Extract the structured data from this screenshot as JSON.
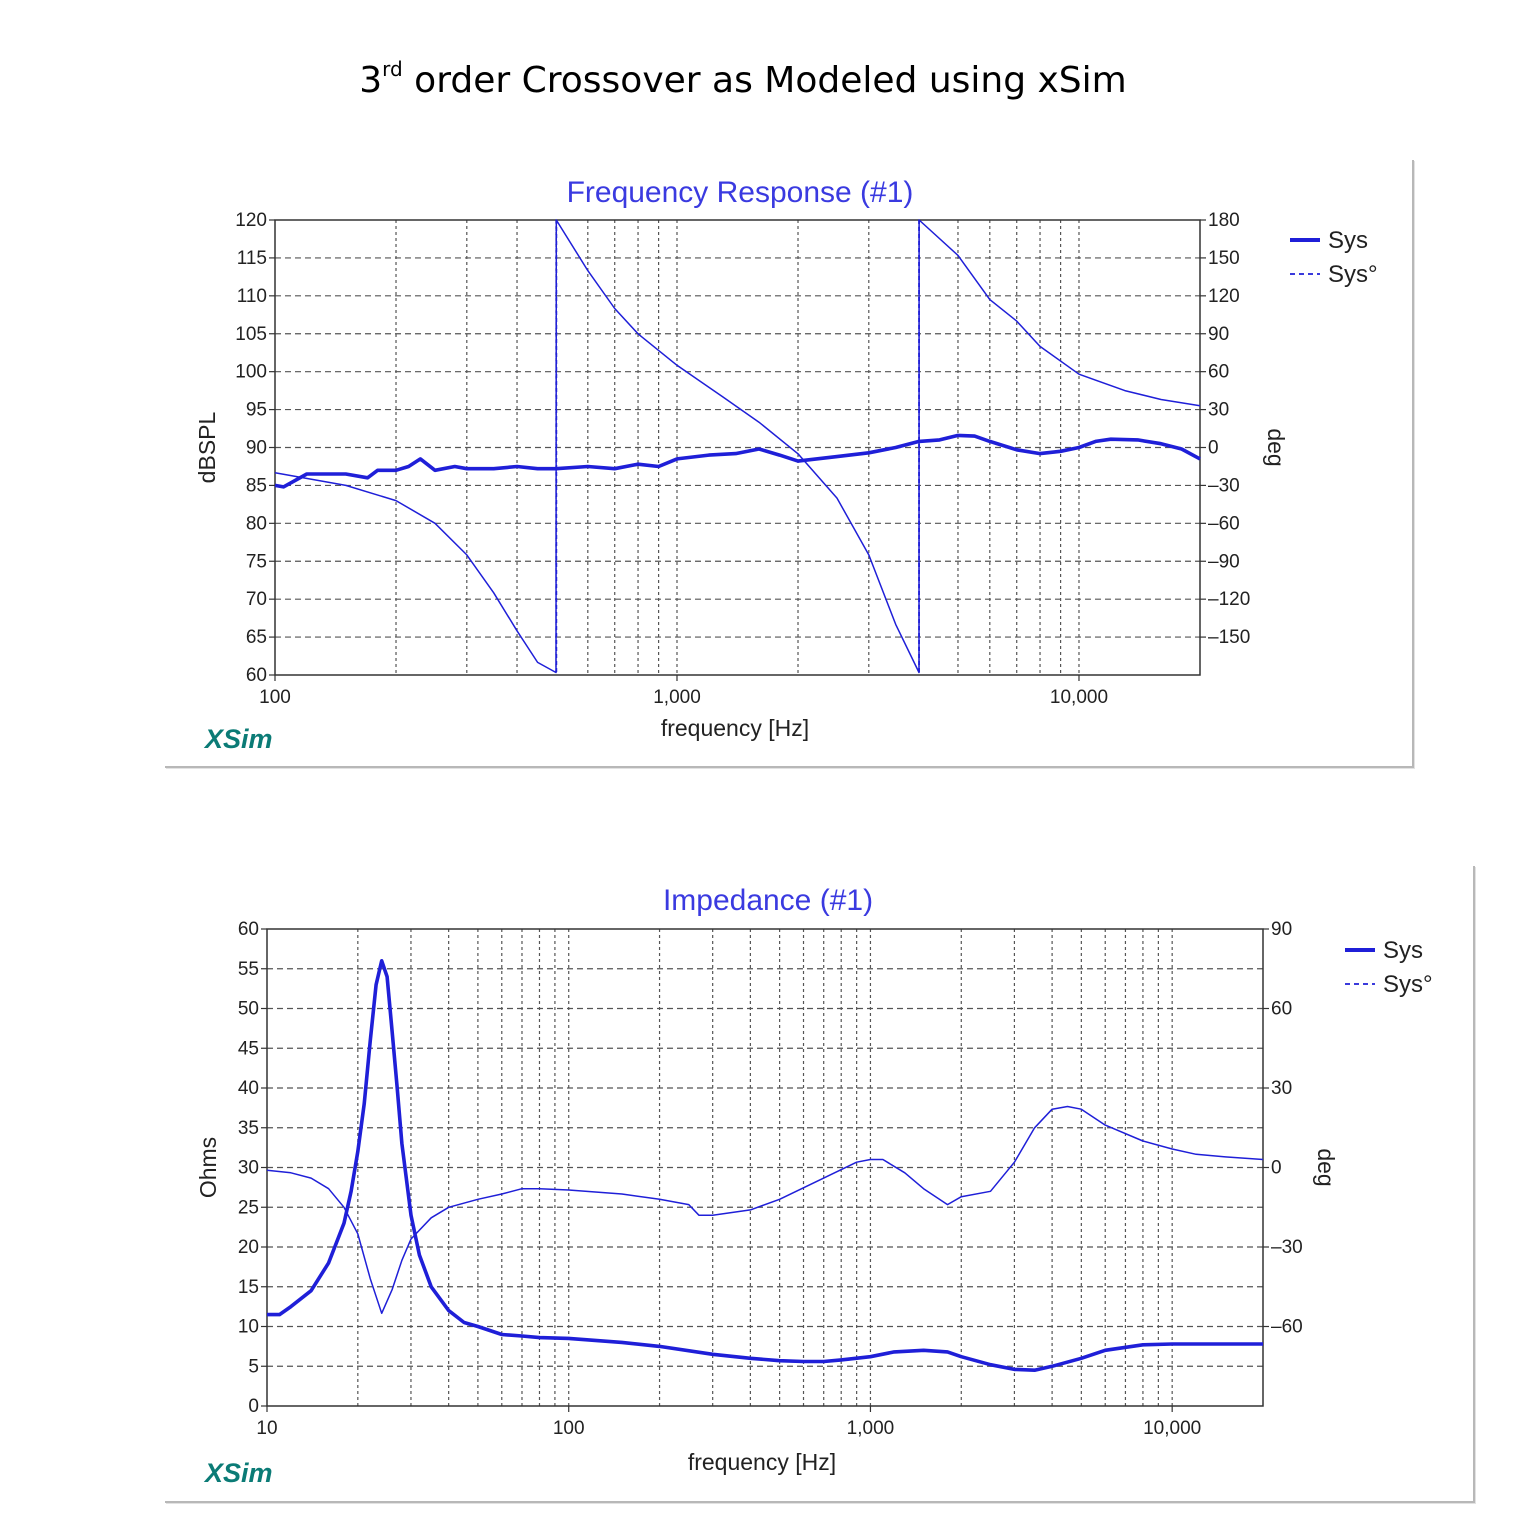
{
  "page": {
    "title_main": "3",
    "title_sup": "rd",
    "title_rest": " order Crossover as Modeled using xSim"
  },
  "colors": {
    "line": "#1f1fd8",
    "title": "#3a3ae0",
    "brand": "#0b7b76",
    "grid": "#555555"
  },
  "chart_data": [
    {
      "type": "line",
      "title": "Frequency Response (#1)",
      "xlabel": "frequency [Hz]",
      "ylabel": "dBSPL",
      "y2label": "deg",
      "xscale": "log",
      "xlim": [
        100,
        20000
      ],
      "ylim": [
        60,
        120
      ],
      "y2lim": [
        -180,
        180
      ],
      "xticks": [
        100,
        1000,
        10000
      ],
      "xtick_labels": [
        "100",
        "1,000",
        "10,000"
      ],
      "yticks": [
        "120",
        "115",
        "110",
        "105",
        "100",
        "95",
        "90",
        "85",
        "80",
        "75",
        "70",
        "65",
        "60"
      ],
      "y2ticks": [
        "180",
        "150",
        "120",
        "90",
        "60",
        "30",
        "0",
        "-30",
        "-60",
        "-90",
        "-120",
        "-150"
      ],
      "grid": true,
      "legend_position": "top-right",
      "legend": [
        "Sys",
        "Sys°"
      ],
      "brand": "XSim",
      "series": [
        {
          "name": "Sys",
          "axis": "left",
          "style": "solid-thick",
          "x": [
            100,
            105,
            120,
            150,
            170,
            180,
            200,
            215,
            230,
            250,
            280,
            300,
            350,
            400,
            450,
            500,
            600,
            700,
            800,
            900,
            1000,
            1200,
            1400,
            1600,
            1800,
            2000,
            2500,
            3000,
            3500,
            4000,
            4500,
            5000,
            5500,
            6000,
            7000,
            8000,
            9000,
            10000,
            11000,
            12000,
            14000,
            16000,
            18000,
            20000
          ],
          "y": [
            85,
            84.8,
            86.5,
            86.5,
            86,
            87,
            87,
            87.5,
            88.5,
            87,
            87.5,
            87.2,
            87.2,
            87.5,
            87.2,
            87.2,
            87.5,
            87.2,
            87.8,
            87.5,
            88.5,
            89,
            89.2,
            89.8,
            89,
            88.2,
            88.8,
            89.3,
            90,
            90.8,
            91,
            91.6,
            91.5,
            90.8,
            89.7,
            89.2,
            89.5,
            90,
            90.8,
            91.1,
            91,
            90.5,
            89.8,
            88.5
          ]
        },
        {
          "name": "Sys°",
          "axis": "right",
          "style": "solid-thin",
          "wrap": true,
          "x": [
            100,
            150,
            200,
            250,
            300,
            350,
            400,
            450,
            500,
            501,
            600,
            700,
            800,
            1000,
            1300,
            1600,
            2000,
            2500,
            3000,
            3500,
            4000,
            4001,
            5000,
            6000,
            7000,
            8000,
            10000,
            13000,
            16000,
            20000
          ],
          "y": [
            -20,
            -30,
            -42,
            -60,
            -85,
            -115,
            -145,
            -170,
            -178,
            180,
            140,
            110,
            90,
            65,
            40,
            20,
            -5,
            -40,
            -85,
            -140,
            -178,
            180,
            152,
            117,
            100,
            80,
            58,
            45,
            38,
            33
          ]
        }
      ]
    },
    {
      "type": "line",
      "title": "Impedance (#1)",
      "xlabel": "frequency [Hz]",
      "ylabel": "Ohms",
      "y2label": "deg",
      "xscale": "log",
      "xlim": [
        10,
        20000
      ],
      "ylim": [
        0,
        60
      ],
      "y2lim": [
        -90,
        90
      ],
      "xticks": [
        10,
        100,
        1000,
        10000
      ],
      "xtick_labels": [
        "10",
        "100",
        "1,000",
        "10,000"
      ],
      "yticks": [
        "60",
        "55",
        "50",
        "45",
        "40",
        "35",
        "30",
        "25",
        "20",
        "15",
        "10",
        "5",
        "0"
      ],
      "y2ticks": [
        "90",
        "60",
        "30",
        "0",
        "-30",
        "-60"
      ],
      "grid": true,
      "legend_position": "top-right",
      "legend": [
        "Sys",
        "Sys°"
      ],
      "brand": "XSim",
      "series": [
        {
          "name": "Sys",
          "axis": "left",
          "style": "solid-thick",
          "x": [
            10,
            11,
            12,
            14,
            16,
            18,
            19,
            20,
            21,
            22,
            23,
            24,
            25,
            26,
            27,
            28,
            30,
            32,
            35,
            40,
            45,
            50,
            60,
            70,
            80,
            100,
            150,
            200,
            300,
            400,
            500,
            600,
            700,
            800,
            1000,
            1200,
            1500,
            1800,
            2000,
            2500,
            3000,
            3500,
            4000,
            5000,
            6000,
            8000,
            10000,
            14000,
            20000
          ],
          "y": [
            11.5,
            11.5,
            12.5,
            14.5,
            18,
            23,
            27,
            32,
            38,
            46,
            53,
            56,
            54,
            47,
            40,
            33,
            24,
            19,
            15,
            12,
            10.5,
            10,
            9,
            8.8,
            8.6,
            8.5,
            8,
            7.5,
            6.5,
            6,
            5.7,
            5.6,
            5.6,
            5.8,
            6.2,
            6.8,
            7.0,
            6.8,
            6.2,
            5.2,
            4.6,
            4.5,
            5,
            6,
            7,
            7.7,
            7.8,
            7.8,
            7.8
          ]
        },
        {
          "name": "Sys°",
          "axis": "right",
          "style": "solid-thin",
          "x": [
            10,
            12,
            14,
            16,
            18,
            20,
            22,
            24,
            26,
            28,
            30,
            35,
            40,
            50,
            60,
            70,
            80,
            100,
            150,
            200,
            250,
            270,
            300,
            400,
            500,
            700,
            900,
            1000,
            1100,
            1300,
            1500,
            1800,
            2000,
            2500,
            3000,
            3500,
            4000,
            4500,
            5000,
            6000,
            8000,
            10000,
            12000,
            15000,
            20000
          ],
          "y": [
            -1,
            -2,
            -4,
            -8,
            -15,
            -25,
            -42,
            -55,
            -46,
            -35,
            -27,
            -19,
            -15,
            -12,
            -10,
            -8,
            -8,
            -8.5,
            -10,
            -12,
            -14,
            -18,
            -18,
            -16,
            -12,
            -4,
            2,
            3,
            3,
            -2,
            -8,
            -14,
            -11,
            -9,
            2,
            15,
            22,
            23,
            22,
            16,
            10,
            7,
            5,
            4,
            3
          ]
        }
      ]
    }
  ]
}
